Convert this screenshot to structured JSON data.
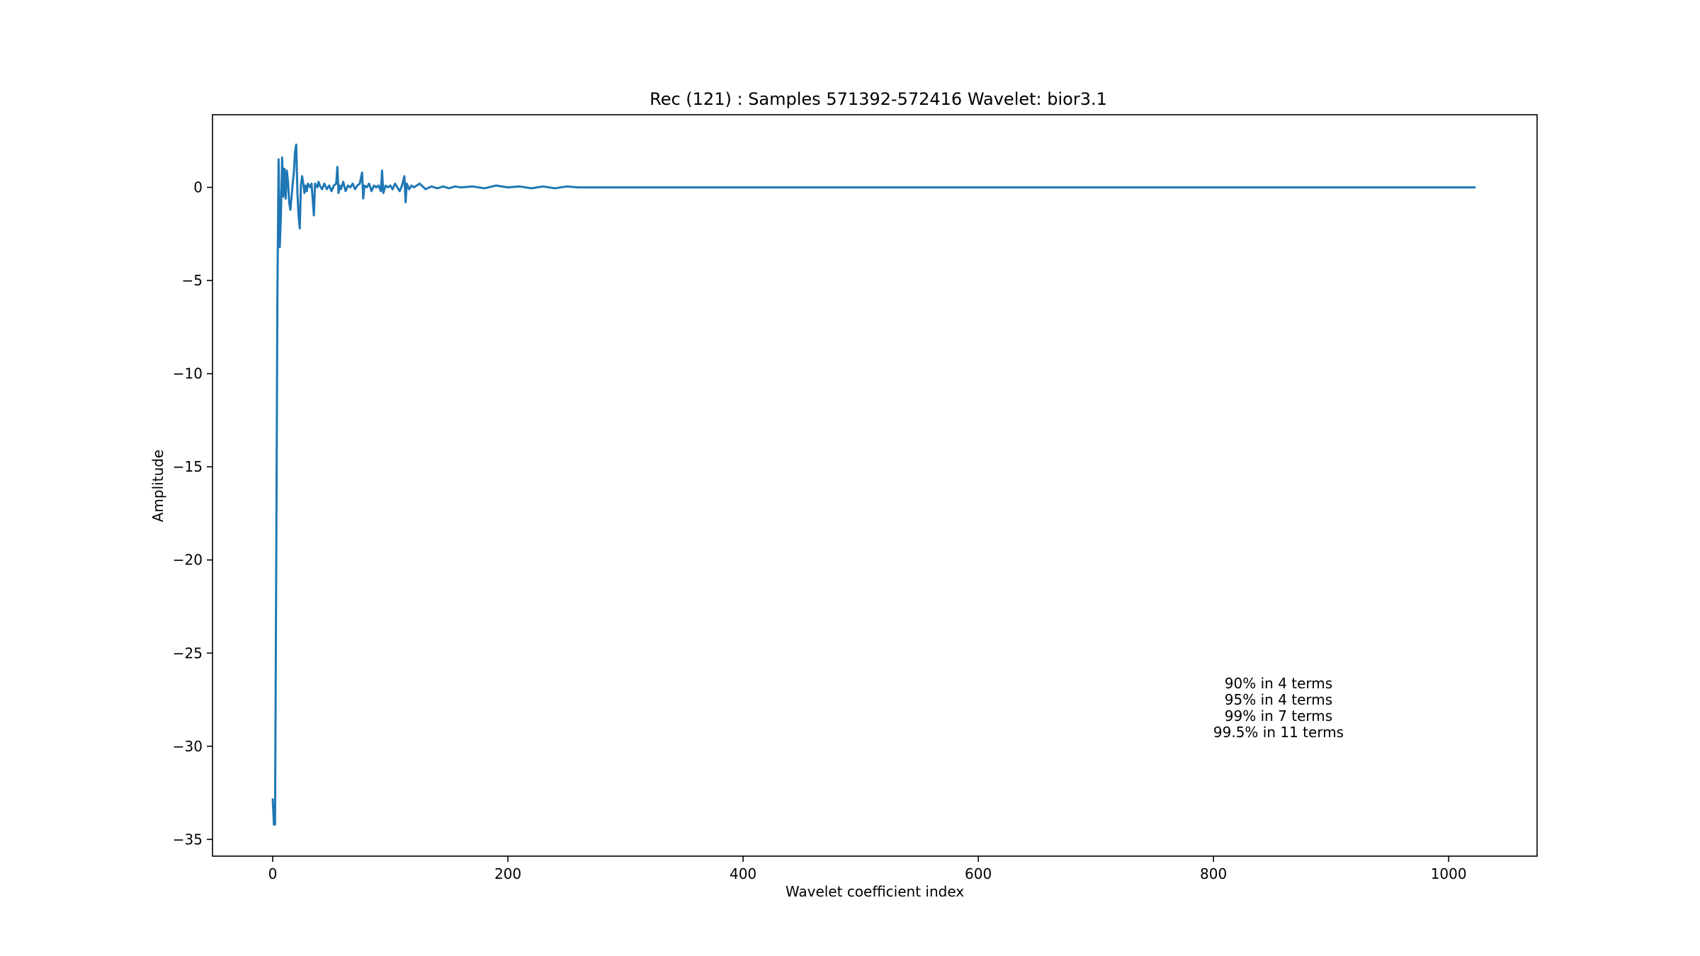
{
  "chart_data": {
    "type": "line",
    "title": "Rec (121) : Samples 571392-572416 Wavelet: bior3.1",
    "xlabel": "Wavelet coefficient index",
    "ylabel": "Amplitude",
    "xlim": [
      -51.2,
      1075.2
    ],
    "ylim": [
      -35.9,
      3.9
    ],
    "xticks": [
      0,
      200,
      400,
      600,
      800,
      1000
    ],
    "xtick_labels": [
      "0",
      "200",
      "400",
      "600",
      "800",
      "1000"
    ],
    "yticks": [
      0,
      -5,
      -10,
      -15,
      -20,
      -25,
      -30,
      -35
    ],
    "ytick_labels": [
      "0",
      "−5",
      "−10",
      "−15",
      "−20",
      "−25",
      "−30",
      "−35"
    ],
    "grid": false,
    "color": "#1f77b4",
    "annotation": [
      "90% in 4 terms",
      "95% in 4 terms",
      "99% in 7 terms",
      "99.5% in 11 terms"
    ],
    "series": [
      {
        "x": [
          0,
          1,
          2,
          3,
          4,
          5,
          6,
          7,
          8,
          9,
          10,
          11,
          12,
          13,
          14,
          15,
          16,
          17,
          18,
          19,
          20,
          21,
          22,
          23,
          24,
          25,
          26,
          27,
          28,
          29,
          30,
          31,
          32,
          33,
          34,
          35,
          36,
          37,
          38,
          39,
          40,
          42,
          44,
          46,
          48,
          50,
          52,
          54,
          55,
          56,
          57,
          58,
          60,
          62,
          64,
          66,
          68,
          70,
          72,
          74,
          76,
          77,
          78,
          80,
          82,
          84,
          86,
          88,
          90,
          92,
          93,
          94,
          96,
          98,
          100,
          102,
          104,
          106,
          108,
          110,
          112,
          113,
          114,
          116,
          118,
          120,
          125,
          130,
          135,
          140,
          145,
          150,
          155,
          160,
          170,
          180,
          190,
          200,
          210,
          220,
          230,
          240,
          250,
          260,
          300,
          400,
          500,
          600,
          700,
          800,
          900,
          1000,
          1023
        ],
        "y": [
          -32.8,
          -34.2,
          -34.2,
          -20.0,
          -6.0,
          1.5,
          -3.2,
          -1.5,
          1.6,
          -0.5,
          1.0,
          -0.6,
          0.9,
          0.3,
          -0.8,
          -1.2,
          -0.5,
          0.2,
          0.8,
          1.9,
          2.3,
          -0.3,
          -1.5,
          -2.2,
          0.1,
          0.6,
          0.2,
          -0.3,
          0.1,
          -0.2,
          0.2,
          0.1,
          0.0,
          0.2,
          -0.6,
          -1.5,
          0.2,
          0.1,
          0.0,
          0.3,
          0.1,
          -0.1,
          0.2,
          -0.1,
          0.1,
          -0.2,
          0.1,
          0.2,
          1.1,
          -0.3,
          0.1,
          -0.1,
          0.3,
          -0.2,
          0.1,
          0.0,
          0.2,
          -0.1,
          0.1,
          0.2,
          0.8,
          -0.6,
          0.1,
          0.0,
          0.2,
          -0.2,
          0.1,
          0.0,
          0.1,
          -0.2,
          0.9,
          -0.3,
          0.1,
          0.0,
          0.1,
          -0.1,
          0.2,
          0.0,
          -0.2,
          0.1,
          0.6,
          -0.8,
          0.2,
          -0.1,
          0.1,
          0.0,
          0.2,
          -0.1,
          0.05,
          -0.05,
          0.05,
          -0.05,
          0.05,
          0.0,
          0.05,
          -0.05,
          0.1,
          0.0,
          0.05,
          -0.05,
          0.05,
          -0.05,
          0.05,
          0.0,
          0.0,
          0.0,
          0.0,
          0.0,
          0.0,
          0.0,
          0.0,
          0.0,
          0.0
        ]
      }
    ]
  }
}
